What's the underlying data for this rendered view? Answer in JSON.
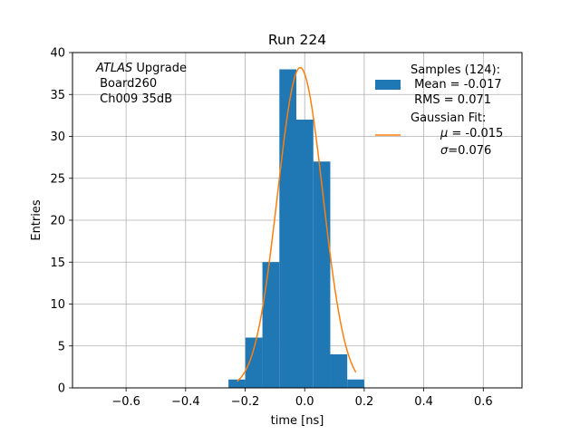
{
  "chart_data": {
    "type": "bar",
    "title": "Run 224",
    "xlabel": "time [ns]",
    "ylabel": "Entries",
    "xlim": [
      -0.78,
      0.73
    ],
    "ylim": [
      0,
      40
    ],
    "grid": true,
    "legend_position": "top-right",
    "xticks": [
      -0.6,
      -0.4,
      -0.2,
      0.0,
      0.2,
      0.4,
      0.6
    ],
    "xtick_labels": [
      "−0.6",
      "−0.4",
      "−0.2",
      "0.0",
      "0.2",
      "0.4",
      "0.6"
    ],
    "yticks": [
      0,
      5,
      10,
      15,
      20,
      25,
      30,
      35,
      40
    ],
    "yticks_labels": [
      "0",
      "5",
      "10",
      "15",
      "20",
      "25",
      "30",
      "35",
      "40"
    ],
    "histogram": {
      "bin_edges": [
        -0.256,
        -0.199,
        -0.142,
        -0.085,
        -0.028,
        0.029,
        0.086,
        0.143,
        0.2
      ],
      "bin_width": 0.057,
      "counts": [
        1,
        6,
        15,
        38,
        32,
        27,
        4,
        1
      ],
      "color": "#1f77b4"
    },
    "fit_curve": {
      "mu": -0.015,
      "sigma": 0.076,
      "amplitude": 38.2,
      "x_range": [
        -0.227,
        0.172
      ],
      "color": "#ff7f0e"
    },
    "annotation": {
      "line1_italic": "ATLAS",
      "line1_rest": " Upgrade",
      "line2": " Board260",
      "line3": " Ch009 35dB"
    },
    "legend": {
      "samples": {
        "line1": "Samples (124):",
        "line2": " Mean = -0.017",
        "line3": " RMS = 0.071"
      },
      "fit": {
        "line1": "Gaussian Fit:",
        "mu_symbol": "μ",
        "mu_value": " = -0.015",
        "sigma_symbol": "σ",
        "sigma_value": "=0.076"
      }
    }
  }
}
